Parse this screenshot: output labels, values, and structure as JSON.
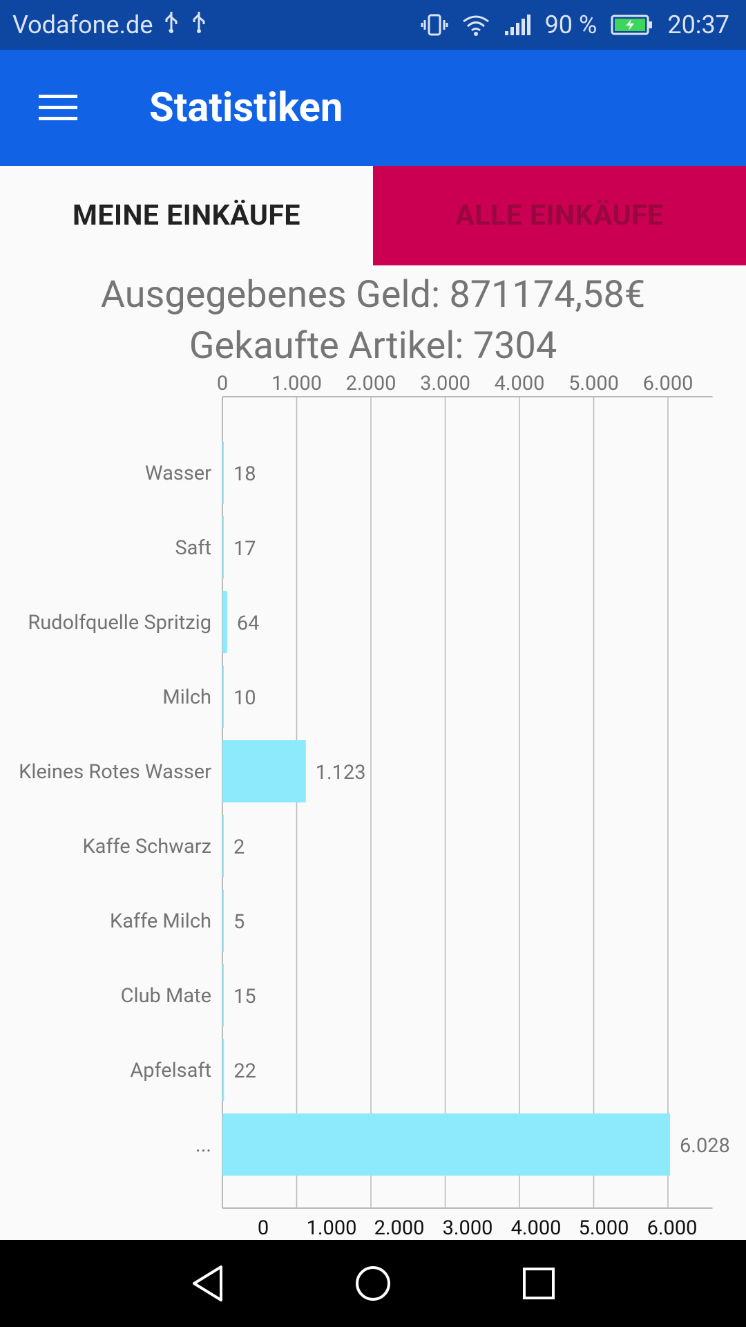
{
  "status_bar": {
    "carrier": "Vodafone.de",
    "battery": "90 %",
    "time": "20:37",
    "icons": [
      "usb-icon",
      "usb-icon",
      "vibrate-icon",
      "wifi-icon",
      "signal-icon",
      "battery-charging-icon"
    ]
  },
  "app_bar": {
    "title": "Statistiken",
    "menu_icon": "menu-icon"
  },
  "tabs": [
    {
      "label": "MEINE EINKÄUFE",
      "active": true
    },
    {
      "label": "ALLE EINKÄUFE",
      "active": false
    }
  ],
  "summary": {
    "money_line": "Ausgegebenes Geld: 871174,58€",
    "items_line": "Gekaufte Artikel: 7304"
  },
  "chart_data": {
    "type": "bar",
    "orientation": "horizontal",
    "categories": [
      "Wasser",
      "Saft",
      "Rudolfquelle Spritzig",
      "Milch",
      "Kleines Rotes Wasser",
      "Kaffe Schwarz",
      "Kaffe Milch",
      "Club Mate",
      "Apfelsaft",
      "..."
    ],
    "values": [
      18,
      17,
      64,
      10,
      1123,
      2,
      5,
      15,
      22,
      6028
    ],
    "value_labels": [
      "18",
      "17",
      "64",
      "10",
      "1.123",
      "2",
      "5",
      "15",
      "22",
      "6.028"
    ],
    "top_ticks": [
      "0",
      "1.000",
      "2.000",
      "3.000",
      "4.000",
      "5.000",
      "6.000"
    ],
    "bottom_ticks": [
      "0",
      "1.000",
      "2.000",
      "3.000",
      "4.000",
      "5.000",
      "6.000"
    ],
    "xlim": [
      0,
      6600
    ],
    "grid": true,
    "legend": "none",
    "colors": {
      "bar": "#8deafc",
      "grid": "#b9b9b9",
      "label": "#737373",
      "bottom_tick": "#111111"
    }
  },
  "nav_bar": {
    "icons": [
      "back-icon",
      "home-icon",
      "recents-icon"
    ]
  },
  "colors": {
    "status_bar": "#0d47a1",
    "app_bar": "#1262e5",
    "tab_inactive": "#cc0052",
    "tab_inactive_text": "#980740"
  }
}
